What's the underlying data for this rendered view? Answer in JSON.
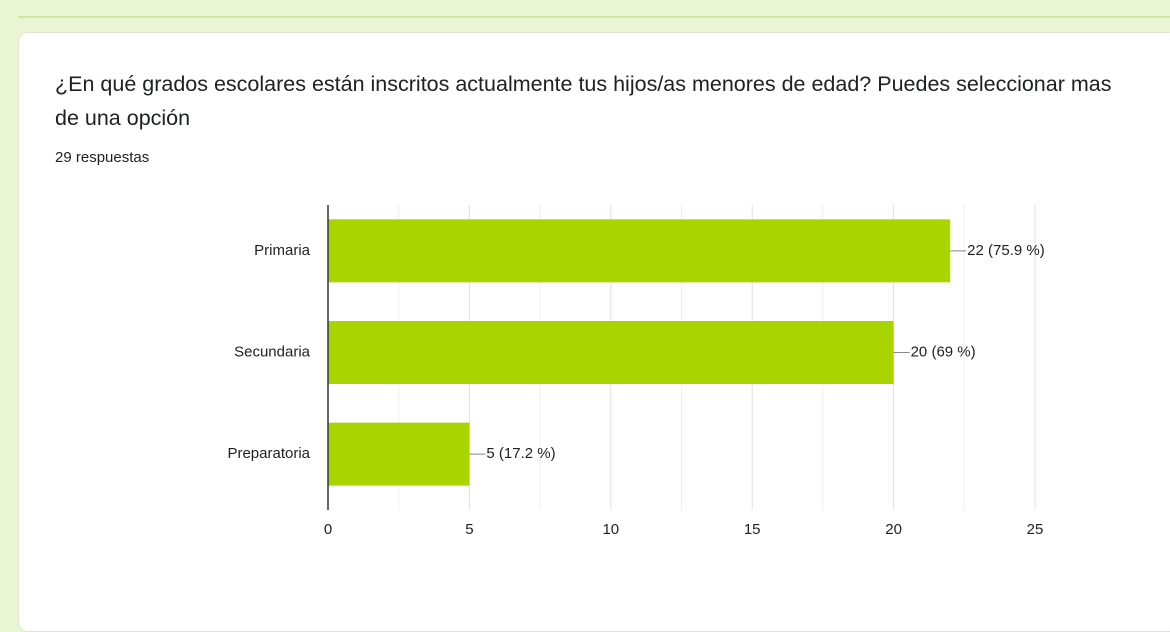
{
  "chart_data": {
    "type": "bar",
    "orientation": "horizontal",
    "title": "¿En qué grados escolares están inscritos actualmente tus hijos/as menores de edad? Puedes seleccionar mas de una opción",
    "subtitle": "29 respuestas",
    "categories": [
      "Primaria",
      "Secundaria",
      "Preparatoria"
    ],
    "values": [
      22,
      20,
      5
    ],
    "value_labels": [
      "22 (75.9 %)",
      "20 (69 %)",
      "5 (17.2 %)"
    ],
    "color": "#a9d400",
    "xlim": [
      0,
      25
    ],
    "xticks": [
      0,
      5,
      10,
      15,
      20,
      25
    ],
    "xminorticks": [
      2.5,
      7.5,
      12.5,
      17.5,
      22.5
    ],
    "grid": true
  }
}
